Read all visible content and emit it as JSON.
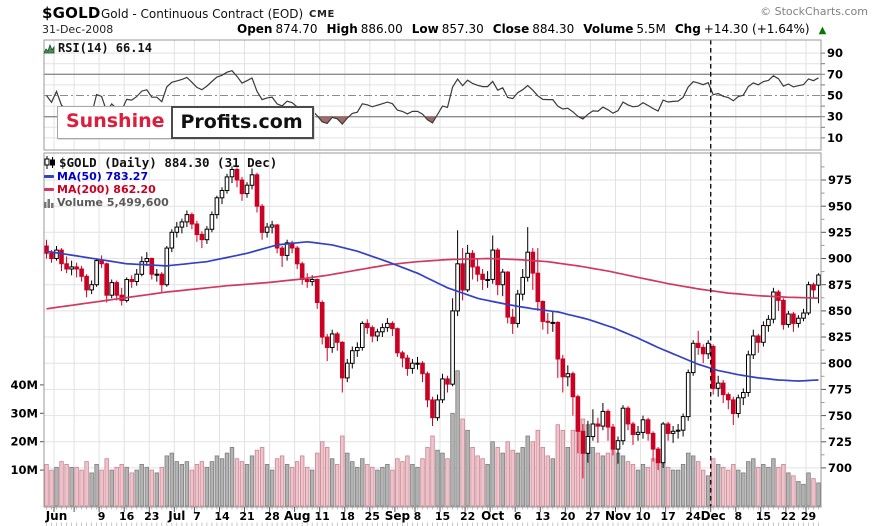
{
  "header": {
    "symbol": "$GOLD",
    "description": "Gold - Continuous Contract (EOD)",
    "exchange": "CME",
    "copyright": "© StockCharts.com",
    "date": "31-Dec-2008",
    "quote": {
      "open_label": "Open",
      "open": "874.70",
      "high_label": "High",
      "high": "886.00",
      "low_label": "Low",
      "low": "857.30",
      "close_label": "Close",
      "close": "884.30",
      "volume_label": "Volume",
      "volume": "5.5M",
      "chg_label": "Chg",
      "chg": "+14.30 (+1.64%)",
      "chg_direction": "▲"
    }
  },
  "watermark": {
    "part1": "Sunshine",
    "part2": "Profits.com"
  },
  "rsi_panel": {
    "label": "RSI(14) 66.14"
  },
  "legend": {
    "title": "$GOLD (Daily) 884.30 (31 Dec)",
    "ma50": "MA(50) 783.27",
    "ma200": "MA(200) 862.20",
    "volume": "Volume 5,499,600"
  },
  "colors": {
    "up": "#000000",
    "down": "#cc0022",
    "ma50": "#3341c4",
    "ma200": "#d03a60",
    "ma50_text": "#0000cc",
    "ma200_text": "#cc0022",
    "vol_up_fill": "#b3b3b3",
    "vol_up_stroke": "#7f7f7f",
    "vol_down_fill": "#f0c2ca",
    "vol_down_stroke": "#c98795",
    "rsi_line": "#3a3a3a",
    "rsi_fill": "#9a5a5a",
    "grid": "#e2e2e2",
    "band": "#8c8c8c",
    "border": "#999999",
    "green": "#067806",
    "watermark_red": "#dc1e3c"
  },
  "chart_data": {
    "type": "candlestick+volume+rsi",
    "title": "$GOLD Daily, Jun-Dec 2008",
    "price_axis_labels": [
      975,
      950,
      925,
      900,
      875,
      850,
      825,
      800,
      775,
      750,
      725,
      700
    ],
    "rsi_axis_labels": [
      90,
      70,
      50,
      30,
      10
    ],
    "rsi_overbought": 70,
    "rsi_oversold": 30,
    "rsi_mid": 50,
    "volume_axis": [
      {
        "t": "40M",
        "v": 40
      },
      {
        "t": "30M",
        "v": 30
      },
      {
        "t": "20M",
        "v": 20
      },
      {
        "t": "10M",
        "v": 10
      }
    ],
    "x_labels": [
      {
        "t": "Jun",
        "i": 2,
        "m": 1
      },
      {
        "t": "9",
        "i": 11
      },
      {
        "t": "16",
        "i": 16
      },
      {
        "t": "23",
        "i": 21
      },
      {
        "t": "Jul",
        "i": 26,
        "m": 1
      },
      {
        "t": "7",
        "i": 30
      },
      {
        "t": "14",
        "i": 35
      },
      {
        "t": "21",
        "i": 40
      },
      {
        "t": "28",
        "i": 45
      },
      {
        "t": "Aug",
        "i": 50,
        "m": 1
      },
      {
        "t": "11",
        "i": 55
      },
      {
        "t": "18",
        "i": 60
      },
      {
        "t": "25",
        "i": 65
      },
      {
        "t": "Sep",
        "i": 70,
        "m": 1
      },
      {
        "t": "8",
        "i": 74
      },
      {
        "t": "15",
        "i": 79
      },
      {
        "t": "22",
        "i": 84
      },
      {
        "t": "Oct",
        "i": 89,
        "m": 1
      },
      {
        "t": "6",
        "i": 94
      },
      {
        "t": "13",
        "i": 99
      },
      {
        "t": "20",
        "i": 104
      },
      {
        "t": "27",
        "i": 109
      },
      {
        "t": "Nov",
        "i": 114,
        "m": 1
      },
      {
        "t": "10",
        "i": 119
      },
      {
        "t": "17",
        "i": 124
      },
      {
        "t": "24",
        "i": 129
      },
      {
        "t": "Dec",
        "i": 133,
        "m": 1
      },
      {
        "t": "8",
        "i": 138
      },
      {
        "t": "15",
        "i": 143
      },
      {
        "t": "22",
        "i": 148
      },
      {
        "t": "29",
        "i": 152
      }
    ],
    "week_gridlines": [
      2,
      6,
      11,
      16,
      21,
      26,
      30,
      35,
      40,
      45,
      50,
      55,
      60,
      65,
      70,
      74,
      79,
      84,
      89,
      94,
      99,
      104,
      109,
      114,
      119,
      124,
      129,
      133,
      138,
      143,
      148,
      152
    ],
    "dashed_vline_index": 133,
    "ma50_anchors": [
      [
        0,
        907
      ],
      [
        8,
        901
      ],
      [
        16,
        895
      ],
      [
        24,
        893
      ],
      [
        32,
        897
      ],
      [
        40,
        905
      ],
      [
        46,
        913
      ],
      [
        52,
        916
      ],
      [
        57,
        913
      ],
      [
        62,
        907
      ],
      [
        68,
        897
      ],
      [
        74,
        886
      ],
      [
        80,
        872
      ],
      [
        86,
        862
      ],
      [
        92,
        856
      ],
      [
        97,
        852
      ],
      [
        102,
        849
      ],
      [
        108,
        842
      ],
      [
        113,
        834
      ],
      [
        118,
        824
      ],
      [
        122,
        815
      ],
      [
        126,
        807
      ],
      [
        130,
        799
      ],
      [
        134,
        793
      ],
      [
        138,
        789
      ],
      [
        142,
        786
      ],
      [
        146,
        784
      ],
      [
        150,
        783
      ],
      [
        154,
        784
      ]
    ],
    "ma200_anchors": [
      [
        0,
        852
      ],
      [
        6,
        856
      ],
      [
        12,
        860
      ],
      [
        18,
        864
      ],
      [
        24,
        868
      ],
      [
        30,
        871
      ],
      [
        36,
        874
      ],
      [
        44,
        877
      ],
      [
        50,
        880
      ],
      [
        56,
        884
      ],
      [
        62,
        889
      ],
      [
        68,
        894
      ],
      [
        74,
        897
      ],
      [
        80,
        899
      ],
      [
        88,
        900
      ],
      [
        94,
        899
      ],
      [
        100,
        897
      ],
      [
        106,
        893
      ],
      [
        112,
        888
      ],
      [
        118,
        882
      ],
      [
        124,
        876
      ],
      [
        130,
        871
      ],
      [
        136,
        867
      ],
      [
        142,
        864.5
      ],
      [
        148,
        863
      ],
      [
        154,
        862.2
      ]
    ],
    "candles": [
      [
        912,
        918,
        900,
        905,
        12
      ],
      [
        905,
        908,
        896,
        900,
        10
      ],
      [
        900,
        912,
        898,
        908,
        11
      ],
      [
        908,
        910,
        888,
        895,
        13
      ],
      [
        895,
        902,
        886,
        890,
        12
      ],
      [
        890,
        898,
        884,
        892,
        11
      ],
      [
        892,
        896,
        882,
        890,
        11
      ],
      [
        890,
        893,
        878,
        883,
        10
      ],
      [
        883,
        885,
        863,
        870,
        13
      ],
      [
        870,
        879,
        866,
        875,
        9
      ],
      [
        875,
        900,
        873,
        898,
        12
      ],
      [
        898,
        903,
        891,
        895,
        10
      ],
      [
        895,
        896,
        858,
        865,
        14
      ],
      [
        865,
        880,
        862,
        877,
        10
      ],
      [
        877,
        879,
        860,
        865,
        11
      ],
      [
        865,
        872,
        855,
        860,
        12
      ],
      [
        860,
        882,
        858,
        880,
        11
      ],
      [
        880,
        884,
        872,
        878,
        9
      ],
      [
        878,
        890,
        874,
        885,
        10
      ],
      [
        885,
        902,
        883,
        897,
        12
      ],
      [
        897,
        906,
        893,
        900,
        11
      ],
      [
        900,
        901,
        880,
        885,
        10
      ],
      [
        885,
        890,
        878,
        885,
        9
      ],
      [
        885,
        887,
        868,
        875,
        11
      ],
      [
        875,
        912,
        873,
        910,
        15
      ],
      [
        910,
        928,
        906,
        925,
        16
      ],
      [
        925,
        935,
        920,
        930,
        13
      ],
      [
        930,
        938,
        924,
        935,
        12
      ],
      [
        935,
        946,
        930,
        942,
        13
      ],
      [
        942,
        944,
        928,
        933,
        10
      ],
      [
        933,
        936,
        916,
        923,
        12
      ],
      [
        923,
        926,
        910,
        918,
        13
      ],
      [
        918,
        931,
        914,
        928,
        11
      ],
      [
        928,
        945,
        925,
        942,
        13
      ],
      [
        942,
        960,
        938,
        958,
        15
      ],
      [
        958,
        968,
        952,
        965,
        14
      ],
      [
        965,
        981,
        962,
        978,
        16
      ],
      [
        978,
        988,
        972,
        985,
        18
      ],
      [
        985,
        987,
        968,
        975,
        14
      ],
      [
        975,
        978,
        955,
        962,
        13
      ],
      [
        962,
        973,
        958,
        970,
        12
      ],
      [
        970,
        986,
        966,
        980,
        15
      ],
      [
        980,
        982,
        944,
        950,
        17
      ],
      [
        950,
        952,
        918,
        925,
        18
      ],
      [
        925,
        934,
        920,
        930,
        12
      ],
      [
        930,
        936,
        924,
        932,
        10
      ],
      [
        932,
        933,
        905,
        910,
        14
      ],
      [
        910,
        912,
        892,
        903,
        15
      ],
      [
        903,
        918,
        898,
        915,
        12
      ],
      [
        915,
        917,
        905,
        910,
        11
      ],
      [
        910,
        912,
        890,
        895,
        13
      ],
      [
        895,
        897,
        875,
        880,
        15
      ],
      [
        880,
        886,
        872,
        878,
        11
      ],
      [
        878,
        884,
        874,
        880,
        10
      ],
      [
        880,
        881,
        852,
        858,
        16
      ],
      [
        858,
        860,
        818,
        825,
        20
      ],
      [
        825,
        828,
        802,
        815,
        18
      ],
      [
        815,
        832,
        810,
        828,
        14
      ],
      [
        828,
        830,
        812,
        820,
        12
      ],
      [
        820,
        821,
        772,
        786,
        22
      ],
      [
        786,
        804,
        782,
        800,
        16
      ],
      [
        800,
        816,
        795,
        812,
        13
      ],
      [
        812,
        820,
        806,
        815,
        11
      ],
      [
        815,
        840,
        812,
        838,
        14
      ],
      [
        838,
        842,
        828,
        834,
        12
      ],
      [
        834,
        836,
        820,
        826,
        11
      ],
      [
        826,
        833,
        821,
        830,
        10
      ],
      [
        830,
        838,
        825,
        834,
        11
      ],
      [
        834,
        843,
        830,
        838,
        12
      ],
      [
        838,
        840,
        826,
        833,
        10
      ],
      [
        833,
        834,
        806,
        810,
        14
      ],
      [
        810,
        812,
        796,
        805,
        13
      ],
      [
        805,
        808,
        788,
        795,
        15
      ],
      [
        795,
        804,
        790,
        800,
        12
      ],
      [
        800,
        806,
        794,
        800,
        11
      ],
      [
        800,
        802,
        782,
        790,
        14
      ],
      [
        790,
        792,
        758,
        765,
        18
      ],
      [
        765,
        768,
        740,
        748,
        22
      ],
      [
        748,
        770,
        745,
        765,
        17
      ],
      [
        765,
        790,
        762,
        785,
        16
      ],
      [
        785,
        788,
        772,
        780,
        14
      ],
      [
        780,
        862,
        778,
        850,
        30
      ],
      [
        850,
        927,
        845,
        895,
        45
      ],
      [
        895,
        910,
        860,
        870,
        28
      ],
      [
        870,
        913,
        868,
        905,
        24
      ],
      [
        905,
        908,
        880,
        892,
        18
      ],
      [
        892,
        900,
        878,
        885,
        15
      ],
      [
        885,
        890,
        870,
        880,
        14
      ],
      [
        880,
        888,
        872,
        880,
        12
      ],
      [
        880,
        922,
        876,
        908,
        20
      ],
      [
        908,
        910,
        865,
        875,
        18
      ],
      [
        875,
        890,
        864,
        887,
        16
      ],
      [
        887,
        888,
        838,
        844,
        20
      ],
      [
        844,
        852,
        828,
        838,
        17
      ],
      [
        838,
        870,
        834,
        866,
        16
      ],
      [
        866,
        890,
        860,
        882,
        18
      ],
      [
        882,
        930,
        878,
        906,
        22
      ],
      [
        906,
        910,
        870,
        886,
        20
      ],
      [
        886,
        910,
        850,
        859,
        24
      ],
      [
        859,
        860,
        832,
        840,
        18
      ],
      [
        840,
        848,
        828,
        839,
        15
      ],
      [
        839,
        850,
        830,
        839,
        14
      ],
      [
        839,
        840,
        786,
        804,
        26
      ],
      [
        804,
        808,
        772,
        787,
        24
      ],
      [
        787,
        798,
        778,
        790,
        18
      ],
      [
        790,
        792,
        750,
        768,
        24
      ],
      [
        768,
        770,
        714,
        735,
        30
      ],
      [
        735,
        742,
        690,
        714,
        28
      ],
      [
        714,
        745,
        705,
        730,
        26
      ],
      [
        730,
        756,
        726,
        742,
        18
      ],
      [
        742,
        748,
        724,
        740,
        16
      ],
      [
        740,
        762,
        736,
        754,
        15
      ],
      [
        754,
        756,
        726,
        739,
        16
      ],
      [
        739,
        742,
        712,
        718,
        18
      ],
      [
        718,
        730,
        704,
        726,
        16
      ],
      [
        726,
        760,
        722,
        757,
        15
      ],
      [
        757,
        759,
        736,
        742,
        13
      ],
      [
        742,
        744,
        722,
        732,
        12
      ],
      [
        732,
        740,
        726,
        734,
        10
      ],
      [
        734,
        750,
        728,
        746,
        12
      ],
      [
        746,
        748,
        726,
        733,
        11
      ],
      [
        733,
        735,
        706,
        718,
        14
      ],
      [
        718,
        720,
        698,
        705,
        16
      ],
      [
        705,
        744,
        700,
        742,
        15
      ],
      [
        742,
        744,
        726,
        733,
        11
      ],
      [
        733,
        740,
        724,
        735,
        10
      ],
      [
        735,
        742,
        728,
        736,
        10
      ],
      [
        736,
        752,
        730,
        749,
        12
      ],
      [
        749,
        794,
        745,
        791,
        16
      ],
      [
        791,
        822,
        788,
        819,
        15
      ],
      [
        819,
        831,
        808,
        815,
        13
      ],
      [
        815,
        818,
        800,
        809,
        10
      ],
      [
        809,
        822,
        804,
        819,
        8
      ],
      [
        816,
        818,
        770,
        776,
        14
      ],
      [
        776,
        788,
        768,
        781,
        12
      ],
      [
        781,
        784,
        762,
        770,
        11
      ],
      [
        770,
        772,
        756,
        765,
        10
      ],
      [
        765,
        768,
        741,
        752,
        12
      ],
      [
        752,
        770,
        748,
        767,
        10
      ],
      [
        767,
        776,
        760,
        772,
        9
      ],
      [
        772,
        812,
        768,
        808,
        13
      ],
      [
        808,
        832,
        804,
        826,
        14
      ],
      [
        826,
        828,
        810,
        820,
        11
      ],
      [
        820,
        840,
        816,
        836,
        12
      ],
      [
        836,
        846,
        830,
        842,
        11
      ],
      [
        842,
        872,
        838,
        868,
        14
      ],
      [
        868,
        870,
        850,
        860,
        11
      ],
      [
        860,
        862,
        832,
        837,
        12
      ],
      [
        837,
        850,
        834,
        847,
        9
      ],
      [
        847,
        849,
        830,
        838,
        8
      ],
      [
        838,
        846,
        834,
        843,
        6
      ],
      [
        843,
        852,
        840,
        848,
        5
      ],
      [
        848,
        878,
        846,
        875,
        9
      ],
      [
        875,
        877,
        862,
        870,
        7
      ],
      [
        874.7,
        886,
        857.3,
        884.3,
        5.5
      ]
    ]
  }
}
